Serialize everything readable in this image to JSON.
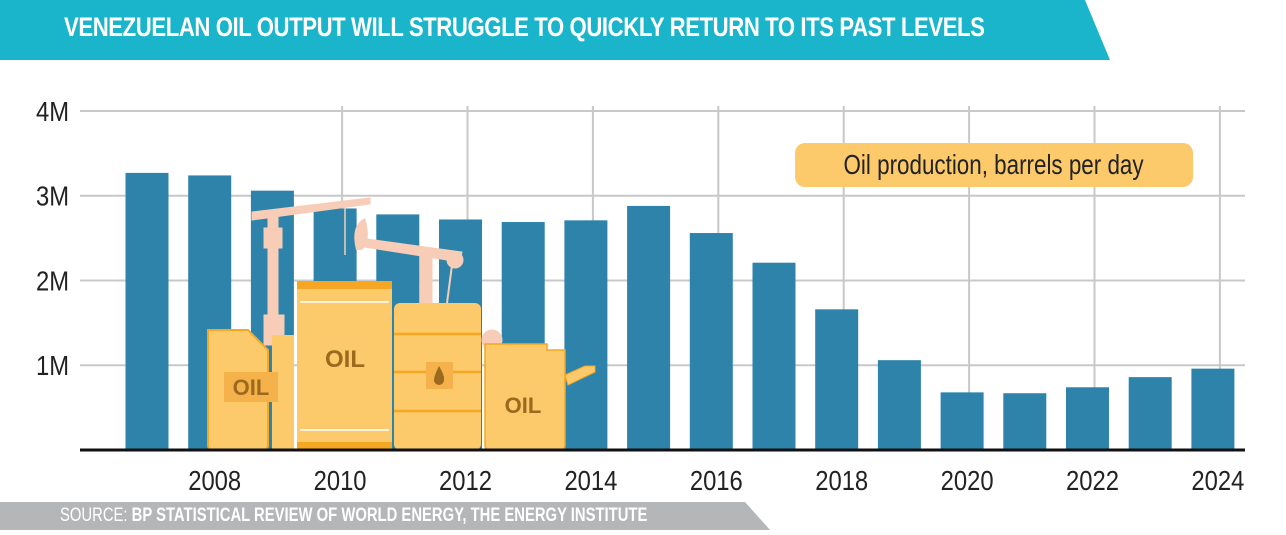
{
  "title": "VENEZUELAN OIL OUTPUT WILL STRUGGLE TO QUICKLY RETURN TO ITS PAST LEVELS",
  "source_label": "SOURCE:",
  "source_text": "BP STATISTICAL REVIEW OF WORLD ENERGY, THE ENERGY INSTITUTE",
  "colors": {
    "bar": "#2e83ab",
    "banner": "#1bb5cb",
    "legend": "#fcc96b"
  },
  "chart_data": {
    "type": "bar",
    "title": "Oil production, barrels per day",
    "categories": [
      "2007",
      "2008",
      "2009",
      "2010",
      "2011",
      "2012",
      "2013",
      "2014",
      "2015",
      "2016",
      "2017",
      "2018",
      "2019",
      "2020",
      "2021",
      "2022",
      "2023",
      "2024"
    ],
    "values": [
      3270000,
      3240000,
      3060000,
      2850000,
      2780000,
      2720000,
      2690000,
      2710000,
      2880000,
      2560000,
      2210000,
      1660000,
      1060000,
      680000,
      670000,
      740000,
      860000,
      960000
    ],
    "x_tick_labels": [
      "2008",
      "2010",
      "2012",
      "2014",
      "2016",
      "2018",
      "2020",
      "2022",
      "2024"
    ],
    "y_tick_labels": [
      "1M",
      "2M",
      "3M",
      "4M"
    ],
    "y_ticks": [
      1000000,
      2000000,
      3000000,
      4000000
    ],
    "ylim": [
      0,
      4000000
    ],
    "xlabel": "",
    "ylabel": "",
    "grid": true,
    "legend_placement": "top-right"
  }
}
